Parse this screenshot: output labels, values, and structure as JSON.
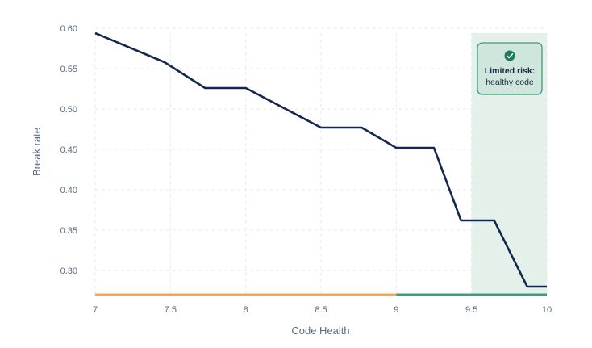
{
  "chart_data": {
    "type": "line",
    "xlabel": "Code Health",
    "ylabel": "Break rate",
    "xlim": [
      7,
      10
    ],
    "ylim": [
      0.27,
      0.6
    ],
    "x_ticks": [
      "7",
      "7.5",
      "8",
      "8.5",
      "9",
      "9.5",
      "10"
    ],
    "y_ticks": [
      "0.60",
      "0.55",
      "0.50",
      "0.45",
      "0.40",
      "0.35",
      "0.30"
    ],
    "grid": true,
    "series": [
      {
        "color": "#14274e",
        "points": [
          [
            7.0,
            0.594
          ],
          [
            7.46,
            0.558
          ],
          [
            7.73,
            0.526
          ],
          [
            8.0,
            0.526
          ],
          [
            8.5,
            0.477
          ],
          [
            8.77,
            0.477
          ],
          [
            9.0,
            0.452
          ],
          [
            9.25,
            0.452
          ],
          [
            9.43,
            0.362
          ],
          [
            9.65,
            0.362
          ],
          [
            9.87,
            0.28
          ],
          [
            10.0,
            0.28
          ]
        ]
      }
    ],
    "baseline": [
      {
        "from": 7,
        "to": 9,
        "color": "#f5a45a"
      },
      {
        "from": 9,
        "to": 10,
        "color": "#3f9a7e"
      }
    ],
    "shaded_region": {
      "from": 9.5,
      "to": 10,
      "color": "#e3f1ea"
    },
    "callout": {
      "title": "Limited risk:",
      "subtitle": "healthy code",
      "icon": "check-circle-icon",
      "fill": "#cfe6dc",
      "border": "#3f9a7e"
    }
  }
}
